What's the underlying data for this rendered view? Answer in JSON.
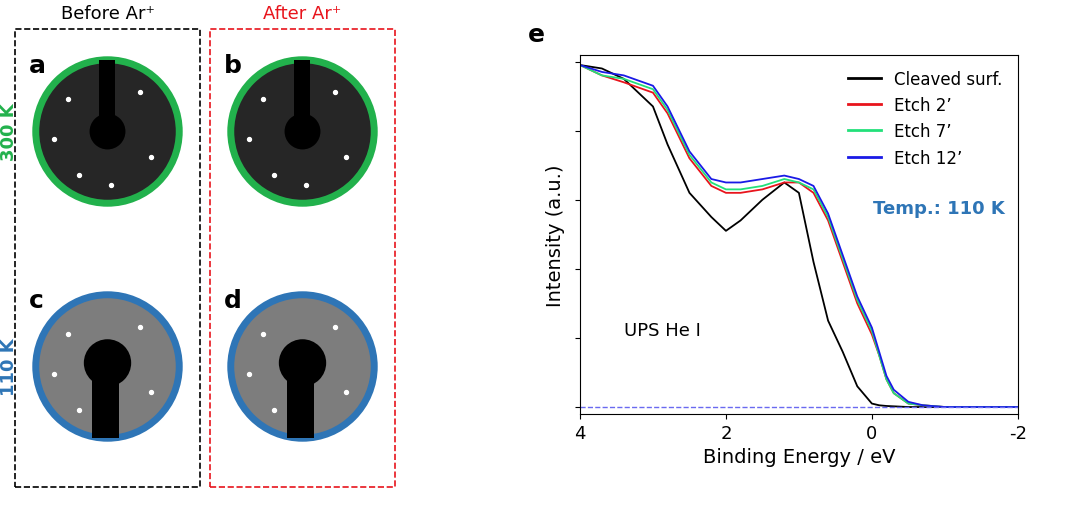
{
  "leed": {
    "columns": [
      "Before Ar⁺",
      "After Ar⁺"
    ],
    "column_colors": [
      "#000000",
      "#e8141c"
    ],
    "rows": [
      "300 K",
      "110 K"
    ],
    "row_colors": [
      "#22b14c",
      "#2e75b6"
    ],
    "panels": [
      [
        "a",
        "b"
      ],
      [
        "c",
        "d"
      ]
    ]
  },
  "chart_data": {
    "type": "line",
    "panel": "e",
    "xlabel": "Binding Energy / eV",
    "ylabel": "Intensity (a.u.)",
    "annotations": [
      "UPS He I"
    ],
    "temperature_note": "Temp.: 110 K",
    "temperature_color": "#2e75b6",
    "x": [
      4,
      3.7,
      3.4,
      3.0,
      2.8,
      2.5,
      2.2,
      2.0,
      1.8,
      1.5,
      1.2,
      1.0,
      0.8,
      0.6,
      0.4,
      0.2,
      0.0,
      -0.1,
      -0.2,
      -0.3,
      -0.5,
      -0.7,
      -1.0,
      -1.5,
      -2.0
    ],
    "series": [
      {
        "name": "Cleaved surf.",
        "color": "#000000",
        "values": [
          9.9,
          9.8,
          9.5,
          8.7,
          7.6,
          6.2,
          5.5,
          5.1,
          5.4,
          6.0,
          6.5,
          6.2,
          4.2,
          2.5,
          1.6,
          0.6,
          0.1,
          0.05,
          0.03,
          0.02,
          0.0,
          0.0,
          0.0,
          0.0,
          0.0
        ]
      },
      {
        "name": "Etch 2’",
        "color": "#e8141c",
        "values": [
          9.9,
          9.6,
          9.4,
          9.1,
          8.5,
          7.2,
          6.4,
          6.2,
          6.2,
          6.3,
          6.5,
          6.5,
          6.2,
          5.4,
          4.2,
          3.0,
          2.1,
          1.5,
          0.8,
          0.4,
          0.1,
          0.05,
          0.0,
          0.0,
          0.0
        ]
      },
      {
        "name": "Etch 7’",
        "color": "#22e07a",
        "values": [
          9.9,
          9.6,
          9.5,
          9.2,
          8.6,
          7.3,
          6.5,
          6.3,
          6.3,
          6.4,
          6.6,
          6.5,
          6.3,
          5.5,
          4.3,
          3.1,
          2.2,
          1.5,
          0.8,
          0.4,
          0.1,
          0.05,
          0.0,
          0.0,
          0.0
        ]
      },
      {
        "name": "Etch 12’",
        "color": "#1a1ae6",
        "values": [
          9.9,
          9.7,
          9.6,
          9.3,
          8.7,
          7.4,
          6.6,
          6.5,
          6.5,
          6.6,
          6.7,
          6.6,
          6.4,
          5.6,
          4.4,
          3.2,
          2.3,
          1.6,
          0.9,
          0.5,
          0.15,
          0.05,
          0.0,
          0.0,
          0.0
        ]
      }
    ],
    "baseline": 0,
    "xlim": [
      4,
      -2
    ],
    "xticks": [
      4,
      2,
      0,
      -2
    ],
    "ylim": [
      -0.2,
      10.2
    ],
    "yticks": [
      0,
      2,
      4,
      6,
      8,
      10
    ],
    "tick_labels": "x",
    "legend": "upper right",
    "grid": false
  }
}
